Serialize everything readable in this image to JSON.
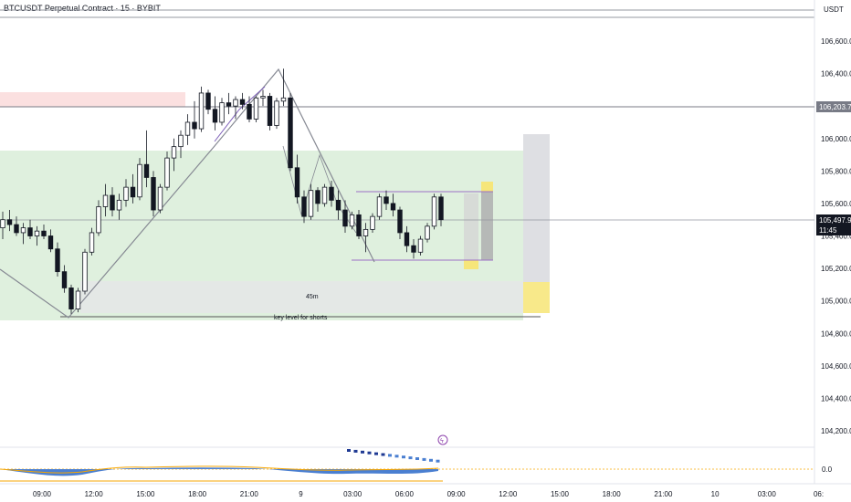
{
  "header": {
    "title": "BTCUSDT Perpetual Contract · 15 · BYBIT",
    "currency": "USDT"
  },
  "chart_data": {
    "type": "candlestick",
    "x_ticks": [
      "09:00",
      "12:00",
      "15:00",
      "18:00",
      "21:00",
      "9",
      "03:00",
      "06:00",
      "09:00",
      "12:00",
      "15:00",
      "18:00",
      "21:00",
      "10",
      "03:00",
      "06:"
    ],
    "y_ticks": [
      104200,
      104400,
      104600,
      104800,
      105000,
      105200,
      105400,
      105600,
      105800,
      106000,
      106200,
      106400,
      106600
    ],
    "y_tick_labels": [
      "104,200.0",
      "104,400.0",
      "104,600.0",
      "104,800.0",
      "105,000.0",
      "105,200.0",
      "105,400.0",
      "105,600.0",
      "105,800.0",
      "106,000.0",
      "106,200.0",
      "106,400.0",
      "106,600.0"
    ],
    "ylim": [
      104100,
      106800
    ],
    "horizontal_line": {
      "value": 106203.7,
      "label": "106,203.7"
    },
    "last_price": {
      "value": 105497.9,
      "label": "105,497.9",
      "countdown": "11:45"
    },
    "annotations": {
      "key_level": "key level for shorts",
      "zone_label": "45m"
    },
    "oscillator": {
      "zero_label": "0.0"
    },
    "candles": [
      {
        "o": 105450,
        "h": 105550,
        "l": 105380,
        "c": 105500
      },
      {
        "o": 105500,
        "h": 105560,
        "l": 105430,
        "c": 105470
      },
      {
        "o": 105470,
        "h": 105520,
        "l": 105400,
        "c": 105420
      },
      {
        "o": 105420,
        "h": 105480,
        "l": 105350,
        "c": 105450
      },
      {
        "o": 105450,
        "h": 105500,
        "l": 105380,
        "c": 105400
      },
      {
        "o": 105400,
        "h": 105460,
        "l": 105340,
        "c": 105430
      },
      {
        "o": 105430,
        "h": 105470,
        "l": 105380,
        "c": 105400
      },
      {
        "o": 105400,
        "h": 105440,
        "l": 105300,
        "c": 105320
      },
      {
        "o": 105320,
        "h": 105360,
        "l": 105150,
        "c": 105180
      },
      {
        "o": 105180,
        "h": 105220,
        "l": 105050,
        "c": 105080
      },
      {
        "o": 105080,
        "h": 105100,
        "l": 104920,
        "c": 104950
      },
      {
        "o": 104950,
        "h": 105080,
        "l": 104930,
        "c": 105060
      },
      {
        "o": 105060,
        "h": 105320,
        "l": 105040,
        "c": 105300
      },
      {
        "o": 105300,
        "h": 105450,
        "l": 105280,
        "c": 105420
      },
      {
        "o": 105420,
        "h": 105620,
        "l": 105400,
        "c": 105580
      },
      {
        "o": 105580,
        "h": 105720,
        "l": 105520,
        "c": 105650
      },
      {
        "o": 105650,
        "h": 105700,
        "l": 105520,
        "c": 105560
      },
      {
        "o": 105560,
        "h": 105660,
        "l": 105500,
        "c": 105620
      },
      {
        "o": 105620,
        "h": 105750,
        "l": 105580,
        "c": 105700
      },
      {
        "o": 105700,
        "h": 105780,
        "l": 105600,
        "c": 105640
      },
      {
        "o": 105640,
        "h": 105880,
        "l": 105620,
        "c": 105840
      },
      {
        "o": 105840,
        "h": 106050,
        "l": 105700,
        "c": 105760
      },
      {
        "o": 105760,
        "h": 105800,
        "l": 105520,
        "c": 105560
      },
      {
        "o": 105560,
        "h": 105720,
        "l": 105540,
        "c": 105700
      },
      {
        "o": 105700,
        "h": 105920,
        "l": 105680,
        "c": 105880
      },
      {
        "o": 105880,
        "h": 106000,
        "l": 105800,
        "c": 105950
      },
      {
        "o": 105950,
        "h": 106050,
        "l": 105880,
        "c": 106020
      },
      {
        "o": 106020,
        "h": 106150,
        "l": 105960,
        "c": 106100
      },
      {
        "o": 106100,
        "h": 106230,
        "l": 106000,
        "c": 106060
      },
      {
        "o": 106060,
        "h": 106320,
        "l": 106040,
        "c": 106280
      },
      {
        "o": 106280,
        "h": 106300,
        "l": 106150,
        "c": 106180
      },
      {
        "o": 106180,
        "h": 106260,
        "l": 106050,
        "c": 106100
      },
      {
        "o": 106100,
        "h": 106250,
        "l": 106080,
        "c": 106220
      },
      {
        "o": 106220,
        "h": 106280,
        "l": 106150,
        "c": 106200
      },
      {
        "o": 106200,
        "h": 106260,
        "l": 106120,
        "c": 106240
      },
      {
        "o": 106240,
        "h": 106280,
        "l": 106180,
        "c": 106210
      },
      {
        "o": 106210,
        "h": 106260,
        "l": 106100,
        "c": 106120
      },
      {
        "o": 106120,
        "h": 106260,
        "l": 106100,
        "c": 106250
      },
      {
        "o": 106250,
        "h": 106300,
        "l": 106200,
        "c": 106260
      },
      {
        "o": 106260,
        "h": 106280,
        "l": 106050,
        "c": 106080
      },
      {
        "o": 106080,
        "h": 106250,
        "l": 106060,
        "c": 106230
      },
      {
        "o": 106230,
        "h": 106430,
        "l": 106200,
        "c": 106250
      },
      {
        "o": 106250,
        "h": 106280,
        "l": 105800,
        "c": 105820
      },
      {
        "o": 105820,
        "h": 105900,
        "l": 105600,
        "c": 105640
      },
      {
        "o": 105640,
        "h": 105680,
        "l": 105480,
        "c": 105520
      },
      {
        "o": 105520,
        "h": 105720,
        "l": 105500,
        "c": 105680
      },
      {
        "o": 105680,
        "h": 105700,
        "l": 105550,
        "c": 105600
      },
      {
        "o": 105600,
        "h": 105720,
        "l": 105580,
        "c": 105700
      },
      {
        "o": 105700,
        "h": 105740,
        "l": 105580,
        "c": 105620
      },
      {
        "o": 105620,
        "h": 105680,
        "l": 105500,
        "c": 105560
      },
      {
        "o": 105560,
        "h": 105620,
        "l": 105420,
        "c": 105460
      },
      {
        "o": 105460,
        "h": 105550,
        "l": 105440,
        "c": 105530
      },
      {
        "o": 105530,
        "h": 105560,
        "l": 105380,
        "c": 105400
      },
      {
        "o": 105400,
        "h": 105480,
        "l": 105300,
        "c": 105440
      },
      {
        "o": 105440,
        "h": 105540,
        "l": 105420,
        "c": 105520
      },
      {
        "o": 105520,
        "h": 105660,
        "l": 105500,
        "c": 105640
      },
      {
        "o": 105640,
        "h": 105680,
        "l": 105560,
        "c": 105600
      },
      {
        "o": 105600,
        "h": 105660,
        "l": 105520,
        "c": 105560
      },
      {
        "o": 105560,
        "h": 105580,
        "l": 105380,
        "c": 105420
      },
      {
        "o": 105420,
        "h": 105460,
        "l": 105300,
        "c": 105340
      },
      {
        "o": 105340,
        "h": 105380,
        "l": 105260,
        "c": 105300
      },
      {
        "o": 105300,
        "h": 105400,
        "l": 105280,
        "c": 105380
      },
      {
        "o": 105380,
        "h": 105480,
        "l": 105360,
        "c": 105460
      },
      {
        "o": 105460,
        "h": 105660,
        "l": 105440,
        "c": 105640
      },
      {
        "o": 105640,
        "h": 105660,
        "l": 105460,
        "c": 105500
      }
    ]
  }
}
